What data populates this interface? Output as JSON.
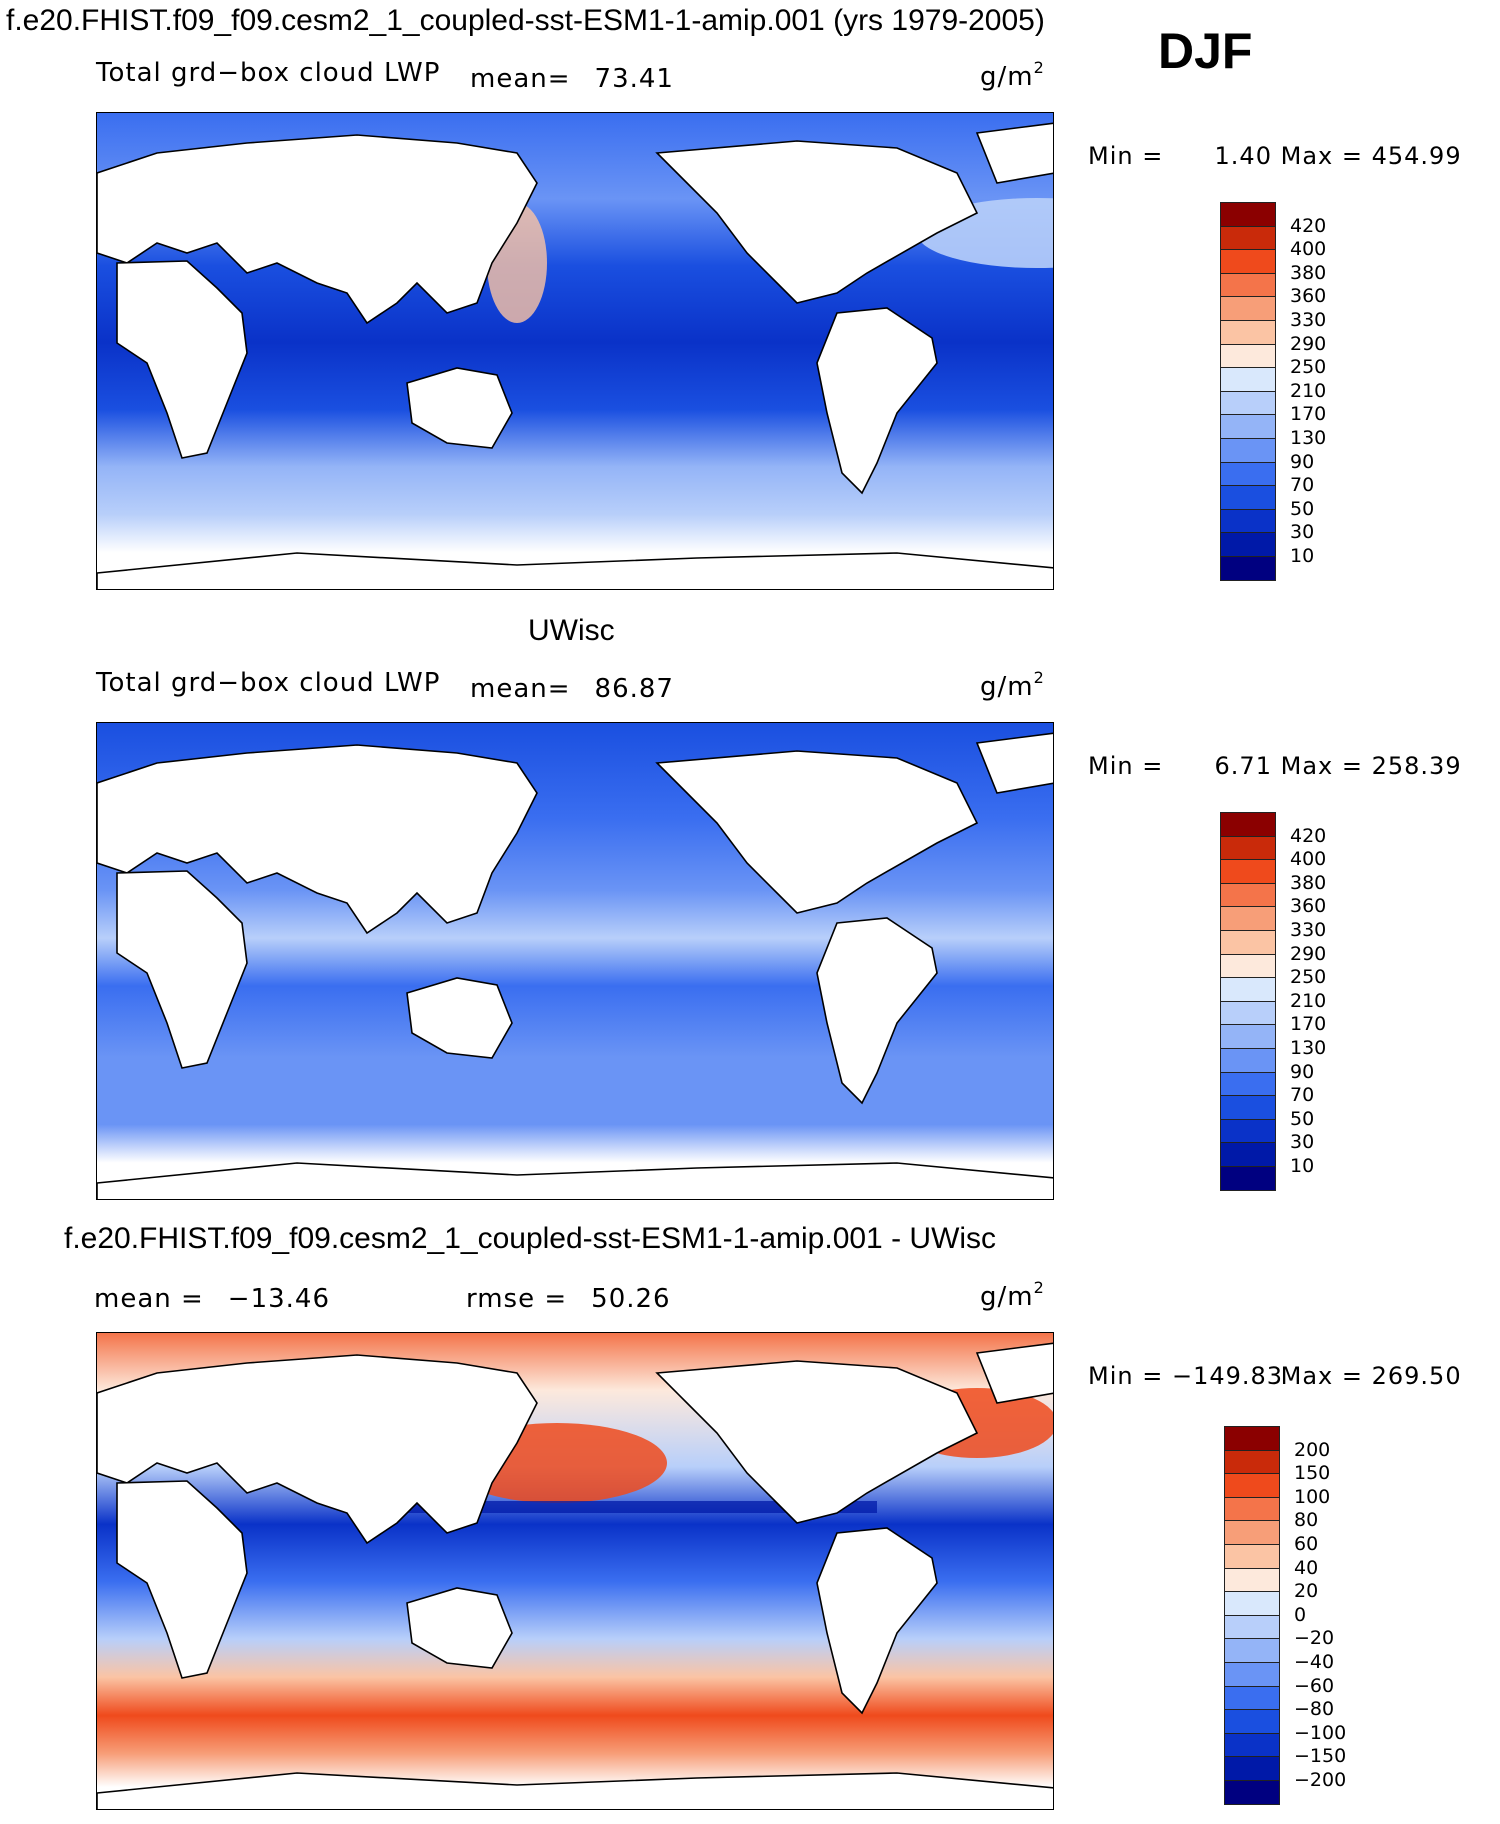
{
  "header": {
    "title": "f.e20.FHIST.f09_f09.cesm2_1_coupled-sst-ESM1-1-amip.001 (yrs 1979-2005)",
    "season": "DJF"
  },
  "colors": {
    "land": "#ffffff",
    "coast": "#000000",
    "abs_scale": [
      "#000080",
      "#0019a8",
      "#0a32c8",
      "#1a4fe0",
      "#3a6ef0",
      "#6a94f5",
      "#94b4f7",
      "#b8cffa",
      "#d9e8fc",
      "#fde9dc",
      "#fbc4a4",
      "#f79e78",
      "#f4744a",
      "#ef4a1c",
      "#c92a0a",
      "#8b0000"
    ],
    "diff_scale": [
      "#000080",
      "#0019a8",
      "#0a32c8",
      "#1a4fe0",
      "#3a6ef0",
      "#6a94f5",
      "#94b4f7",
      "#b8cffa",
      "#d9e8fc",
      "#fde9dc",
      "#fbc4a4",
      "#f79e78",
      "#f4744a",
      "#ef4a1c",
      "#c92a0a",
      "#8b0000"
    ]
  },
  "panels": [
    {
      "model_label": "",
      "variable": "Total grd−box cloud LWP",
      "mean_label": "mean=",
      "mean_value": "73.41",
      "rmse_label": "",
      "rmse_value": "",
      "units": "g/m",
      "units_sup": "2",
      "min_label": "Min =",
      "min_value": "1.40",
      "max_label": "Max =",
      "max_value": "454.99",
      "legend_levels": [
        "420",
        "400",
        "380",
        "360",
        "330",
        "290",
        "250",
        "210",
        "170",
        "130",
        "90",
        "70",
        "50",
        "30",
        "10"
      ]
    },
    {
      "model_label": "UWisc",
      "variable": "Total grd−box cloud LWP",
      "mean_label": "mean=",
      "mean_value": "86.87",
      "rmse_label": "",
      "rmse_value": "",
      "units": "g/m",
      "units_sup": "2",
      "min_label": "Min =",
      "min_value": "6.71",
      "max_label": "Max =",
      "max_value": "258.39",
      "legend_levels": [
        "420",
        "400",
        "380",
        "360",
        "330",
        "290",
        "250",
        "210",
        "170",
        "130",
        "90",
        "70",
        "50",
        "30",
        "10"
      ]
    },
    {
      "model_label": "f.e20.FHIST.f09_f09.cesm2_1_coupled-sst-ESM1-1-amip.001 - UWisc",
      "variable": "",
      "mean_label": "mean =",
      "mean_value": "−13.46",
      "rmse_label": "rmse =",
      "rmse_value": "50.26",
      "units": "g/m",
      "units_sup": "2",
      "min_label": "Min =",
      "min_value": "−149.83",
      "max_label": "Max =",
      "max_value": "269.50",
      "legend_levels": [
        "200",
        "150",
        "100",
        "80",
        "60",
        "40",
        "20",
        "0",
        "−20",
        "−40",
        "−60",
        "−80",
        "−100",
        "−150",
        "−200"
      ]
    }
  ]
}
